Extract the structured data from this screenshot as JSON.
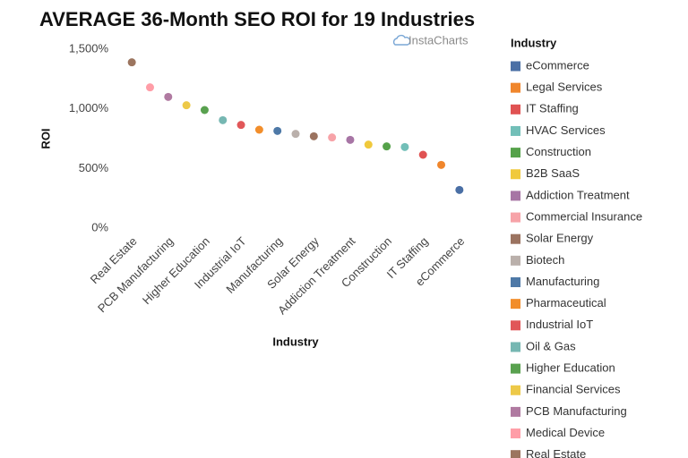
{
  "chart_data": {
    "type": "scatter",
    "title": "AVERAGE 36-Month SEO ROI for 19 Industries",
    "watermark": "InstaCharts",
    "x_label": "Industry",
    "y_label": "ROI",
    "legend_title": "Industry",
    "legend_position": "right",
    "grid": false,
    "categories": [
      "Real Estate",
      null,
      "PCB Manufacturing",
      null,
      "Higher Education",
      null,
      "Industrial IoT",
      null,
      "Manufacturing",
      null,
      "Solar Energy",
      null,
      "Addiction Treatment",
      null,
      "Construction",
      null,
      "IT Staffing",
      null,
      "eCommerce"
    ],
    "ylim": [
      0,
      1500
    ],
    "yticks": [
      {
        "value": 0,
        "label": "0%"
      },
      {
        "value": 500,
        "label": "500%"
      },
      {
        "value": 1000,
        "label": "1,000%"
      },
      {
        "value": 1500,
        "label": "1,500%"
      }
    ],
    "series": [
      {
        "name": "eCommerce",
        "color": "#4a6fa5",
        "values": [
          null,
          null,
          null,
          null,
          null,
          null,
          null,
          null,
          null,
          null,
          null,
          null,
          null,
          null,
          null,
          null,
          null,
          null,
          320
        ]
      },
      {
        "name": "Legal Services",
        "color": "#f0862c",
        "values": [
          null,
          null,
          null,
          null,
          null,
          null,
          null,
          null,
          null,
          null,
          null,
          null,
          null,
          null,
          null,
          null,
          null,
          530,
          null
        ]
      },
      {
        "name": "IT Staffing",
        "color": "#e05252",
        "values": [
          null,
          null,
          null,
          null,
          null,
          null,
          null,
          null,
          null,
          null,
          null,
          null,
          null,
          null,
          null,
          null,
          615,
          null,
          null
        ]
      },
      {
        "name": "HVAC Services",
        "color": "#72bfb8",
        "values": [
          null,
          null,
          null,
          null,
          null,
          null,
          null,
          null,
          null,
          null,
          null,
          null,
          null,
          null,
          null,
          680,
          null,
          null,
          null
        ]
      },
      {
        "name": "Construction",
        "color": "#55a24a",
        "values": [
          null,
          null,
          null,
          null,
          null,
          null,
          null,
          null,
          null,
          null,
          null,
          null,
          null,
          null,
          685,
          null,
          null,
          null,
          null
        ]
      },
      {
        "name": "B2B SaaS",
        "color": "#f0c93c",
        "values": [
          null,
          null,
          null,
          null,
          null,
          null,
          null,
          null,
          null,
          null,
          null,
          null,
          null,
          700,
          null,
          null,
          null,
          null,
          null
        ]
      },
      {
        "name": "Addiction Treatment",
        "color": "#a775a5",
        "values": [
          null,
          null,
          null,
          null,
          null,
          null,
          null,
          null,
          null,
          null,
          null,
          null,
          740,
          null,
          null,
          null,
          null,
          null,
          null
        ]
      },
      {
        "name": "Commercial Insurance",
        "color": "#f7a3a8",
        "values": [
          null,
          null,
          null,
          null,
          null,
          null,
          null,
          null,
          null,
          null,
          null,
          760,
          null,
          null,
          null,
          null,
          null,
          null,
          null
        ]
      },
      {
        "name": "Solar Energy",
        "color": "#9b7360",
        "values": [
          null,
          null,
          null,
          null,
          null,
          null,
          null,
          null,
          null,
          null,
          770,
          null,
          null,
          null,
          null,
          null,
          null,
          null,
          null
        ]
      },
      {
        "name": "Biotech",
        "color": "#bab0ab",
        "values": [
          null,
          null,
          null,
          null,
          null,
          null,
          null,
          null,
          null,
          790,
          null,
          null,
          null,
          null,
          null,
          null,
          null,
          null,
          null
        ]
      },
      {
        "name": "Manufacturing",
        "color": "#4e79a7",
        "values": [
          null,
          null,
          null,
          null,
          null,
          null,
          null,
          null,
          815,
          null,
          null,
          null,
          null,
          null,
          null,
          null,
          null,
          null,
          null
        ]
      },
      {
        "name": "Pharmaceutical",
        "color": "#f28e2b",
        "values": [
          null,
          null,
          null,
          null,
          null,
          null,
          null,
          825,
          null,
          null,
          null,
          null,
          null,
          null,
          null,
          null,
          null,
          null,
          null
        ]
      },
      {
        "name": "Industrial IoT",
        "color": "#e15759",
        "values": [
          null,
          null,
          null,
          null,
          null,
          null,
          865,
          null,
          null,
          null,
          null,
          null,
          null,
          null,
          null,
          null,
          null,
          null,
          null
        ]
      },
      {
        "name": "Oil & Gas",
        "color": "#76b7b2",
        "values": [
          null,
          null,
          null,
          null,
          null,
          905,
          null,
          null,
          null,
          null,
          null,
          null,
          null,
          null,
          null,
          null,
          null,
          null,
          null
        ]
      },
      {
        "name": "Higher Education",
        "color": "#59a14f",
        "values": [
          null,
          null,
          null,
          null,
          990,
          null,
          null,
          null,
          null,
          null,
          null,
          null,
          null,
          null,
          null,
          null,
          null,
          null,
          null
        ]
      },
      {
        "name": "Financial Services",
        "color": "#edc948",
        "values": [
          null,
          null,
          null,
          1030,
          null,
          null,
          null,
          null,
          null,
          null,
          null,
          null,
          null,
          null,
          null,
          null,
          null,
          null,
          null
        ]
      },
      {
        "name": "PCB Manufacturing",
        "color": "#b07aa1",
        "values": [
          null,
          null,
          1100,
          null,
          null,
          null,
          null,
          null,
          null,
          null,
          null,
          null,
          null,
          null,
          null,
          null,
          null,
          null,
          null
        ]
      },
      {
        "name": "Medical Device",
        "color": "#ff9da7",
        "values": [
          null,
          1180,
          null,
          null,
          null,
          null,
          null,
          null,
          null,
          null,
          null,
          null,
          null,
          null,
          null,
          null,
          null,
          null,
          null
        ]
      },
      {
        "name": "Real Estate",
        "color": "#9c755f",
        "values": [
          1390,
          null,
          null,
          null,
          null,
          null,
          null,
          null,
          null,
          null,
          null,
          null,
          null,
          null,
          null,
          null,
          null,
          null,
          null
        ]
      }
    ]
  }
}
